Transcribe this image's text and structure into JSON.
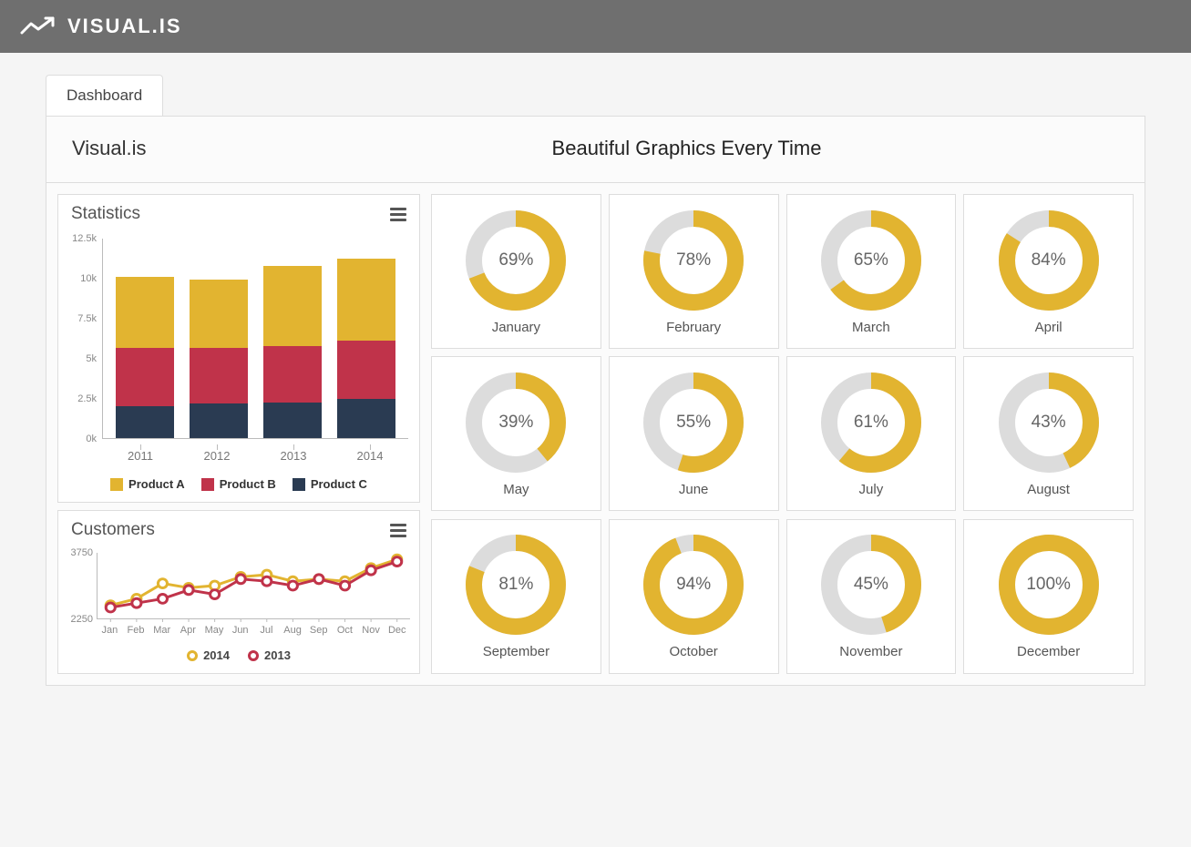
{
  "brand_logo_text": "VISUAL.IS",
  "tab_label": "Dashboard",
  "brand_title": "Visual.is",
  "tagline": "Beautiful Graphics Every Time",
  "colors": {
    "yellow": "#e2b430",
    "red": "#c0334a",
    "navy": "#2a3b52",
    "donut_track": "#dcdcdc",
    "donut_fill": "#e2b430",
    "text_muted": "#777"
  },
  "statistics": {
    "title": "Statistics",
    "type": "stacked-bar",
    "ymax": 12500,
    "yticks": [
      {
        "v": 0,
        "label": "0k"
      },
      {
        "v": 2500,
        "label": "2.5k"
      },
      {
        "v": 5000,
        "label": "5k"
      },
      {
        "v": 7500,
        "label": "7.5k"
      },
      {
        "v": 10000,
        "label": "10k"
      },
      {
        "v": 12500,
        "label": "12.5k"
      }
    ],
    "categories": [
      "2011",
      "2012",
      "2013",
      "2014"
    ],
    "series": [
      {
        "name": "Product C",
        "color": "#2a3b52",
        "values": [
          2000,
          2150,
          2200,
          2450
        ]
      },
      {
        "name": "Product B",
        "color": "#c0334a",
        "values": [
          3650,
          3500,
          3550,
          3650
        ]
      },
      {
        "name": "Product A",
        "color": "#e2b430",
        "values": [
          4400,
          4250,
          5000,
          5100
        ]
      }
    ],
    "legend": [
      {
        "label": "Product A",
        "color": "#e2b430"
      },
      {
        "label": "Product B",
        "color": "#c0334a"
      },
      {
        "label": "Product C",
        "color": "#2a3b52"
      }
    ]
  },
  "customers": {
    "title": "Customers",
    "type": "line",
    "ymin": 2250,
    "ymax": 3750,
    "yticks": [
      {
        "v": 2250,
        "label": "2250"
      },
      {
        "v": 3750,
        "label": "3750"
      }
    ],
    "months": [
      "Jan",
      "Feb",
      "Mar",
      "Apr",
      "May",
      "Jun",
      "Jul",
      "Aug",
      "Sep",
      "Oct",
      "Nov",
      "Dec"
    ],
    "series": [
      {
        "name": "2014",
        "color": "#e2b430",
        "values": [
          2550,
          2700,
          3050,
          2950,
          3000,
          3200,
          3250,
          3100,
          3150,
          3100,
          3400,
          3600
        ]
      },
      {
        "name": "2013",
        "color": "#c0334a",
        "values": [
          2500,
          2600,
          2700,
          2900,
          2800,
          3150,
          3100,
          3000,
          3150,
          3000,
          3350,
          3550
        ]
      }
    ],
    "legend": [
      {
        "label": "2014",
        "color": "#e2b430"
      },
      {
        "label": "2013",
        "color": "#c0334a"
      }
    ],
    "line_width": 3,
    "marker_radius": 5,
    "marker_fill": "#ffffff"
  },
  "donuts": {
    "ring_width": 18,
    "track_color": "#dcdcdc",
    "fill_color": "#e2b430",
    "text_color": "#666",
    "items": [
      {
        "label": "January",
        "pct": 69
      },
      {
        "label": "February",
        "pct": 78
      },
      {
        "label": "March",
        "pct": 65
      },
      {
        "label": "April",
        "pct": 84
      },
      {
        "label": "May",
        "pct": 39
      },
      {
        "label": "June",
        "pct": 55
      },
      {
        "label": "July",
        "pct": 61
      },
      {
        "label": "August",
        "pct": 43
      },
      {
        "label": "September",
        "pct": 81
      },
      {
        "label": "October",
        "pct": 94
      },
      {
        "label": "November",
        "pct": 45
      },
      {
        "label": "December",
        "pct": 100
      }
    ]
  }
}
